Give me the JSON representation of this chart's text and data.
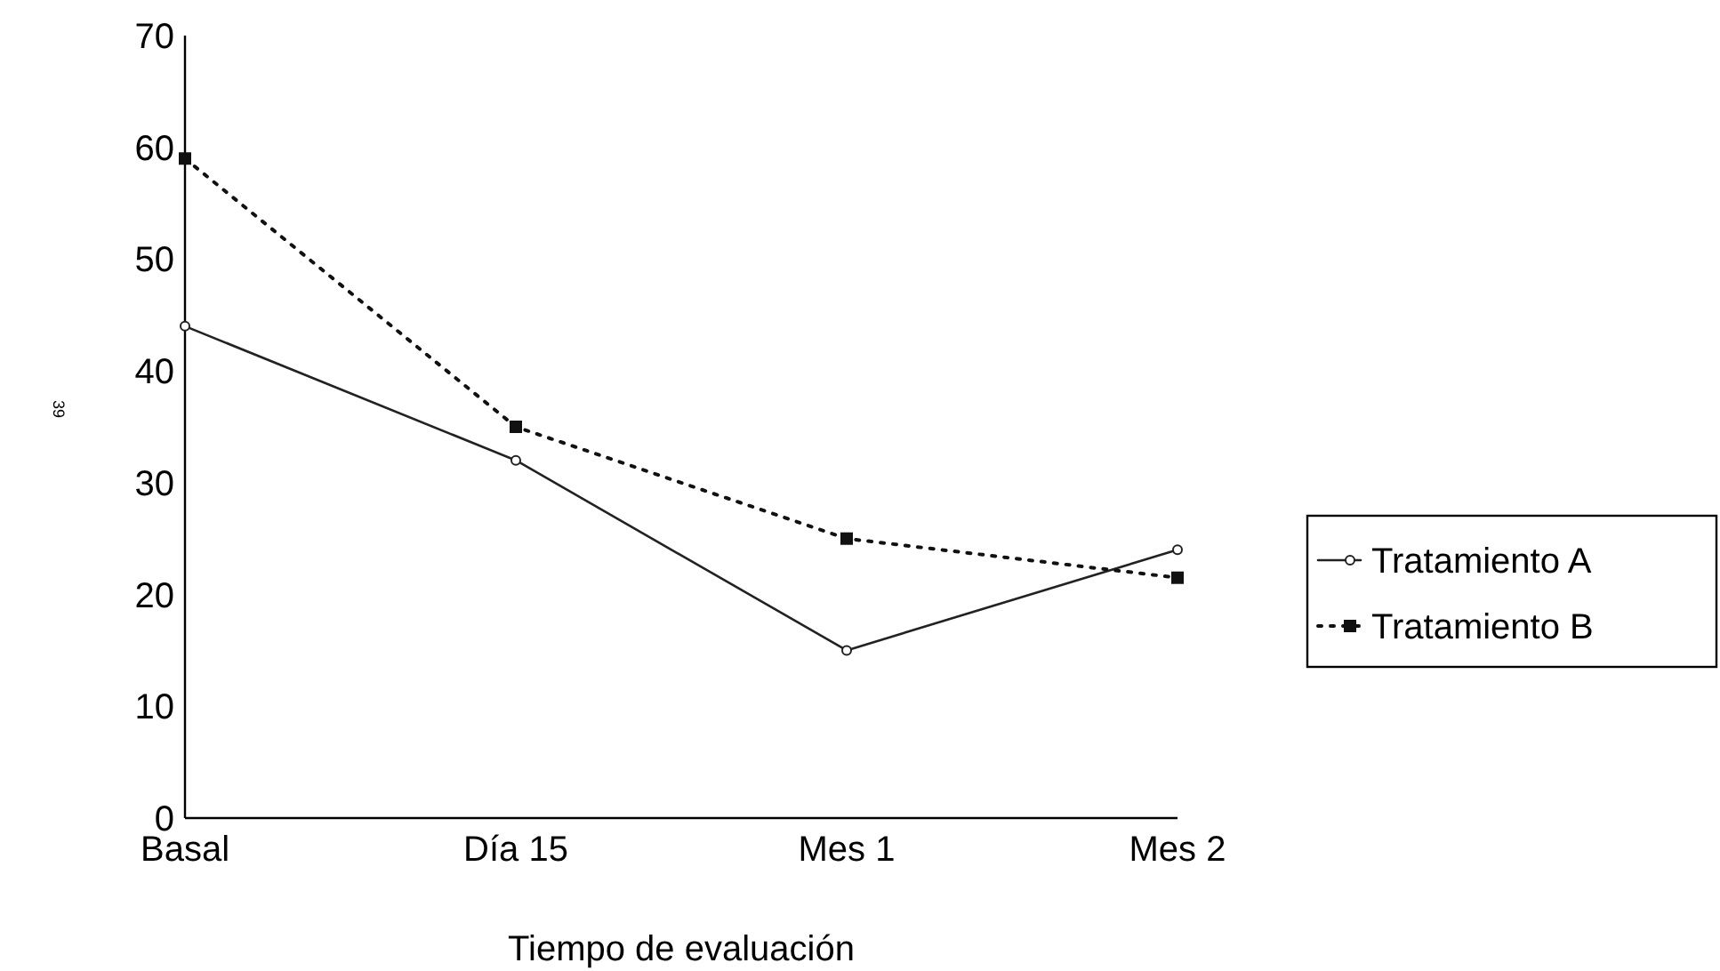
{
  "chart_data": {
    "type": "line",
    "xlabel": "Tiempo de evaluación",
    "categories": [
      "Basal",
      "Día 15",
      "Mes 1",
      "Mes 2"
    ],
    "series": [
      {
        "name": "Tratamiento A",
        "color": "#222222",
        "values": [
          44,
          32,
          15,
          24
        ],
        "marker": "circle",
        "line_style": "solid"
      },
      {
        "name": "Tratamiento B",
        "color": "#111111",
        "values": [
          59,
          35,
          25,
          21.5
        ],
        "marker": "square",
        "line_style": "dotted"
      }
    ],
    "ylim": [
      0,
      70
    ],
    "yticks": [
      0,
      10,
      20,
      30,
      40,
      50,
      60,
      70
    ],
    "grid": false,
    "legend": "right",
    "annotations": [
      "39"
    ]
  }
}
